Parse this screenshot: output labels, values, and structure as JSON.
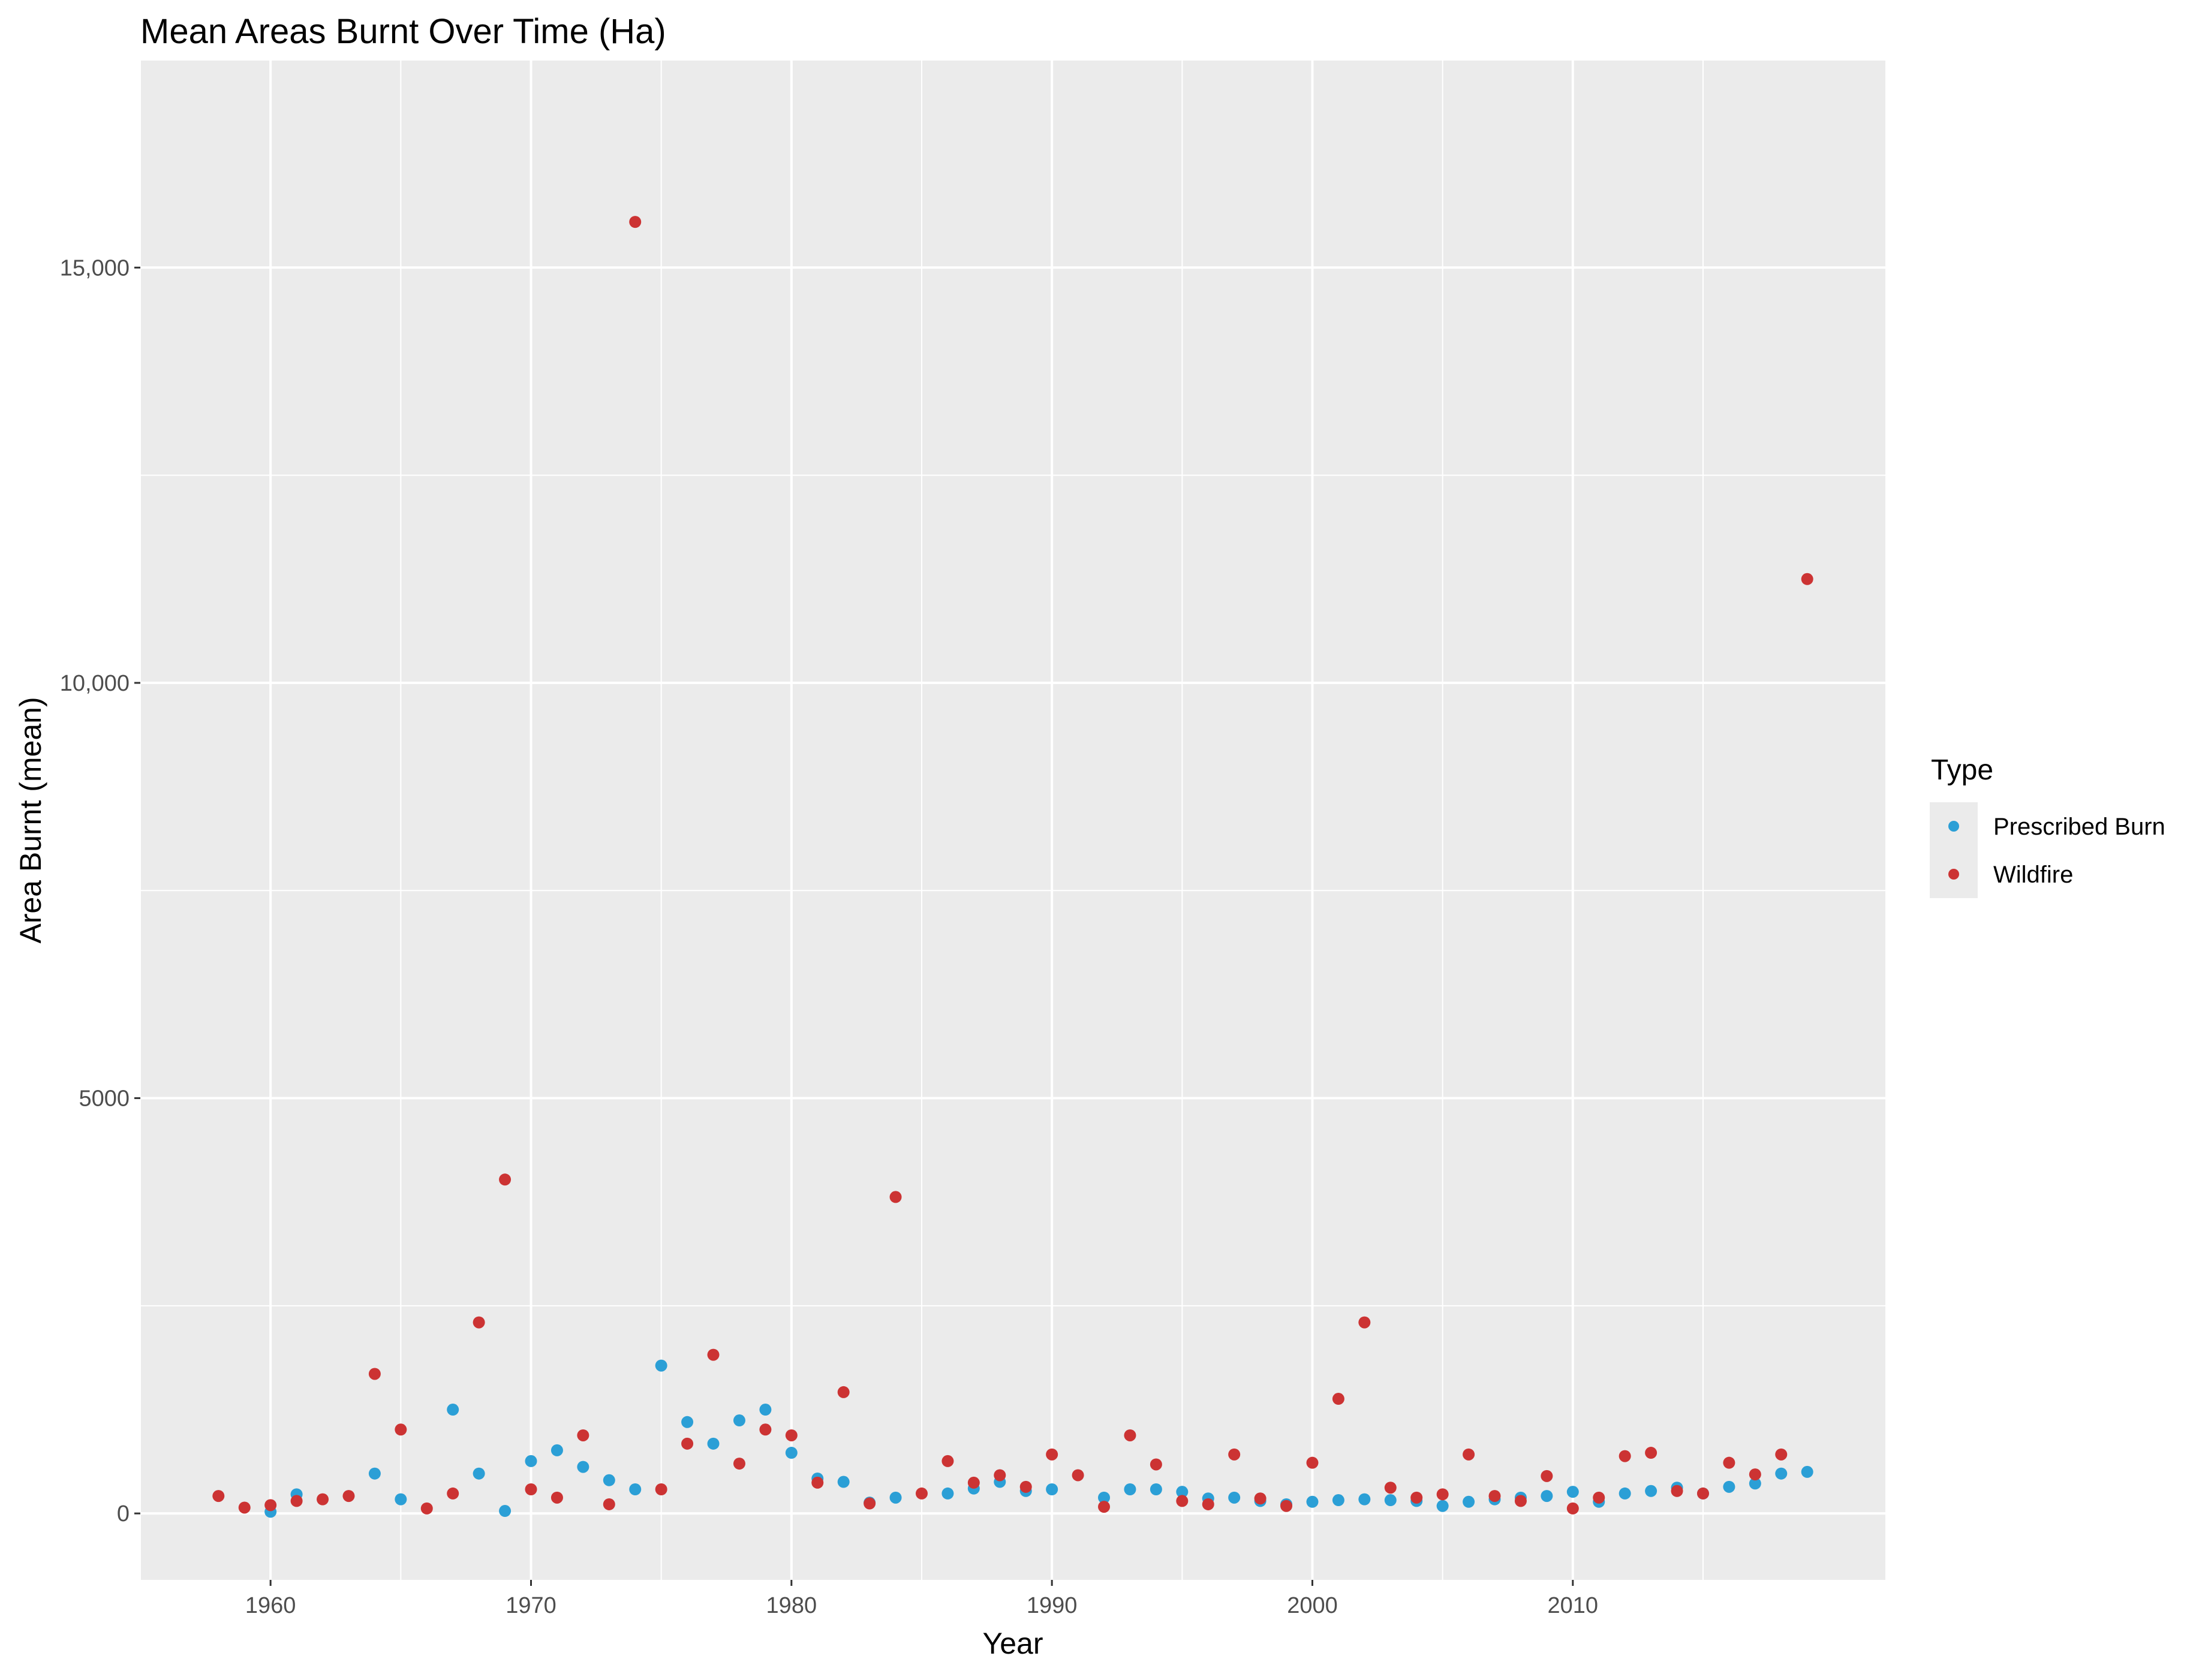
{
  "chart_data": {
    "type": "scatter",
    "title": "Mean Areas Burnt Over Time (Ha)",
    "xlabel": "Year",
    "ylabel": "Area Burnt (mean)",
    "xlim": [
      1955,
      2022
    ],
    "ylim": [
      -800,
      17500
    ],
    "x_ticks": [
      1960,
      1970,
      1980,
      1990,
      2000,
      2010
    ],
    "x_tick_labels": [
      "1960",
      "1970",
      "1980",
      "1990",
      "2000",
      "2010"
    ],
    "y_ticks": [
      0,
      5000,
      10000,
      15000
    ],
    "y_tick_labels": [
      "0",
      "5000",
      "10,000",
      "15,000"
    ],
    "grid": true,
    "legend": {
      "title": "Type",
      "position": "right"
    },
    "series": [
      {
        "name": "Prescribed Burn",
        "color": "#2b9fd6",
        "points": [
          [
            1960,
            20
          ],
          [
            1961,
            230
          ],
          [
            1964,
            480
          ],
          [
            1965,
            170
          ],
          [
            1967,
            1250
          ],
          [
            1968,
            480
          ],
          [
            1969,
            30
          ],
          [
            1970,
            630
          ],
          [
            1971,
            760
          ],
          [
            1972,
            560
          ],
          [
            1973,
            400
          ],
          [
            1974,
            290
          ],
          [
            1975,
            1780
          ],
          [
            1976,
            1100
          ],
          [
            1977,
            840
          ],
          [
            1978,
            1120
          ],
          [
            1979,
            1250
          ],
          [
            1980,
            730
          ],
          [
            1981,
            420
          ],
          [
            1982,
            380
          ],
          [
            1983,
            130
          ],
          [
            1984,
            190
          ],
          [
            1986,
            240
          ],
          [
            1987,
            300
          ],
          [
            1988,
            380
          ],
          [
            1989,
            270
          ],
          [
            1990,
            290
          ],
          [
            1992,
            190
          ],
          [
            1993,
            290
          ],
          [
            1994,
            290
          ],
          [
            1995,
            260
          ],
          [
            1996,
            180
          ],
          [
            1997,
            190
          ],
          [
            1998,
            150
          ],
          [
            1999,
            110
          ],
          [
            2000,
            140
          ],
          [
            2001,
            160
          ],
          [
            2002,
            170
          ],
          [
            2003,
            160
          ],
          [
            2004,
            150
          ],
          [
            2005,
            90
          ],
          [
            2006,
            140
          ],
          [
            2007,
            170
          ],
          [
            2008,
            190
          ],
          [
            2009,
            210
          ],
          [
            2010,
            260
          ],
          [
            2011,
            140
          ],
          [
            2012,
            240
          ],
          [
            2013,
            270
          ],
          [
            2014,
            310
          ],
          [
            2015,
            240
          ],
          [
            2016,
            320
          ],
          [
            2017,
            360
          ],
          [
            2018,
            480
          ],
          [
            2019,
            500
          ]
        ]
      },
      {
        "name": "Wildfire",
        "color": "#cc3333",
        "points": [
          [
            1958,
            210
          ],
          [
            1959,
            70
          ],
          [
            1960,
            100
          ],
          [
            1961,
            150
          ],
          [
            1962,
            170
          ],
          [
            1963,
            210
          ],
          [
            1964,
            1680
          ],
          [
            1965,
            1010
          ],
          [
            1966,
            60
          ],
          [
            1967,
            240
          ],
          [
            1968,
            2300
          ],
          [
            1969,
            4020
          ],
          [
            1970,
            290
          ],
          [
            1971,
            190
          ],
          [
            1972,
            940
          ],
          [
            1973,
            110
          ],
          [
            1974,
            15550
          ],
          [
            1975,
            290
          ],
          [
            1976,
            840
          ],
          [
            1977,
            1910
          ],
          [
            1978,
            600
          ],
          [
            1979,
            1010
          ],
          [
            1980,
            940
          ],
          [
            1981,
            370
          ],
          [
            1982,
            1460
          ],
          [
            1983,
            120
          ],
          [
            1984,
            3810
          ],
          [
            1985,
            240
          ],
          [
            1986,
            630
          ],
          [
            1987,
            370
          ],
          [
            1988,
            460
          ],
          [
            1989,
            320
          ],
          [
            1990,
            710
          ],
          [
            1991,
            460
          ],
          [
            1992,
            80
          ],
          [
            1993,
            940
          ],
          [
            1994,
            590
          ],
          [
            1995,
            150
          ],
          [
            1996,
            110
          ],
          [
            1997,
            710
          ],
          [
            1998,
            180
          ],
          [
            1999,
            90
          ],
          [
            2000,
            610
          ],
          [
            2001,
            1380
          ],
          [
            2002,
            2300
          ],
          [
            2003,
            310
          ],
          [
            2004,
            190
          ],
          [
            2005,
            230
          ],
          [
            2006,
            710
          ],
          [
            2007,
            210
          ],
          [
            2008,
            150
          ],
          [
            2009,
            450
          ],
          [
            2010,
            60
          ],
          [
            2011,
            190
          ],
          [
            2012,
            690
          ],
          [
            2013,
            730
          ],
          [
            2014,
            270
          ],
          [
            2015,
            240
          ],
          [
            2016,
            610
          ],
          [
            2017,
            470
          ],
          [
            2018,
            710
          ],
          [
            2019,
            11250
          ]
        ]
      }
    ]
  }
}
